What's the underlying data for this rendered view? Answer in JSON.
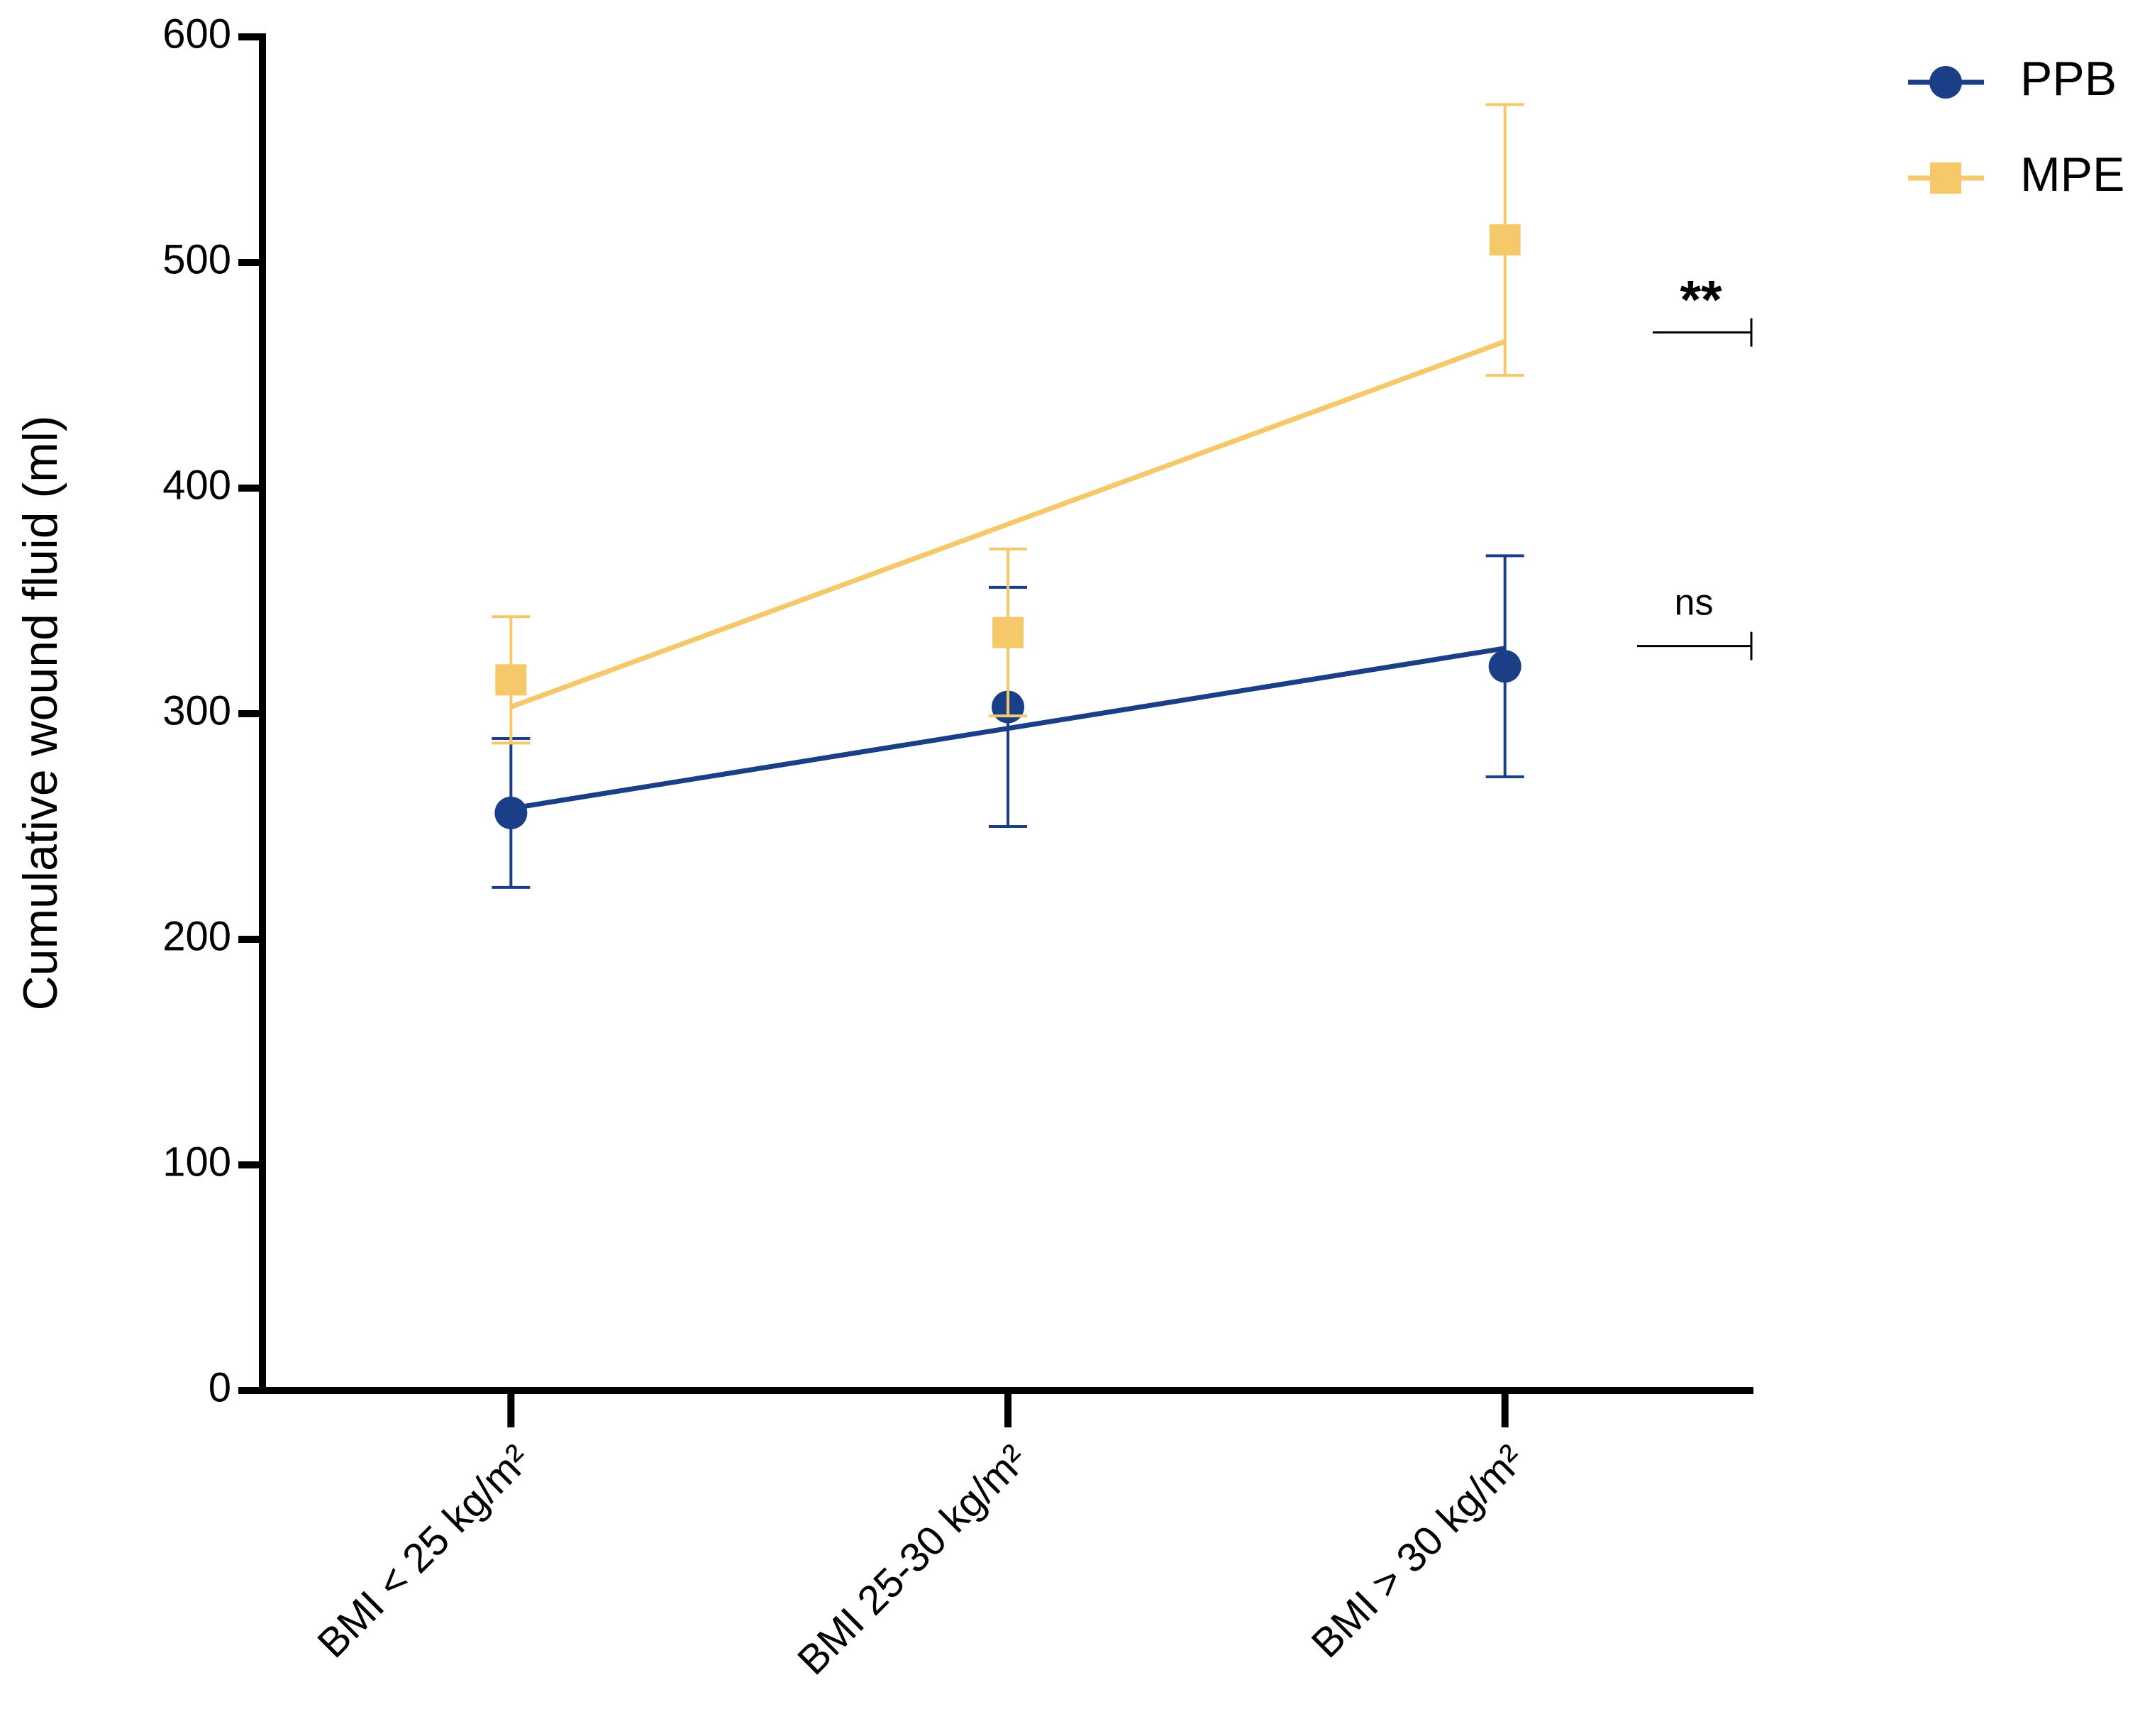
{
  "chart_data": {
    "type": "line",
    "y_label": "Cumulative wound fluid (ml)",
    "categories": [
      "BMI < 25 kg/m²",
      "BMI 25-30 kg/m²",
      "BMI > 30 kg/m²"
    ],
    "ylim": [
      0,
      600
    ],
    "yticks": [
      0,
      100,
      200,
      300,
      400,
      500,
      600
    ],
    "series": [
      {
        "name": "PPB",
        "color": "#1a3f86",
        "marker": "circle",
        "values": [
          256,
          303,
          321
        ],
        "errors": [
          33,
          53,
          49
        ],
        "fit": [
          258,
          329
        ]
      },
      {
        "name": "MPE",
        "color": "#f5c96a",
        "marker": "square",
        "values": [
          315,
          336,
          510
        ],
        "errors": [
          28,
          37,
          60
        ],
        "fit": [
          303,
          465
        ]
      }
    ],
    "annotations": [
      {
        "text": "**",
        "y": 469
      },
      {
        "text": "ns",
        "y": 330
      }
    ],
    "legend": "top-right"
  }
}
